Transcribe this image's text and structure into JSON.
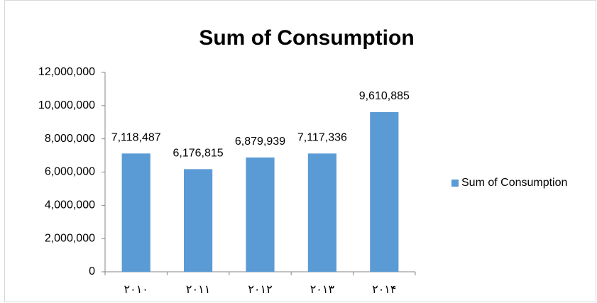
{
  "chart_data": {
    "type": "bar",
    "title": "Sum of Consumption",
    "categories": [
      "۲۰۱۰",
      "۲۰۱۱",
      "۲۰۱۲",
      "۲۰۱۳",
      "۲۰۱۴"
    ],
    "series": [
      {
        "name": "Sum of Consumption",
        "color": "#5b9bd5",
        "values": [
          7118487,
          6176815,
          6879939,
          7117336,
          9610885
        ],
        "value_labels": [
          "7,118,487",
          "6,176,815",
          "6,879,939",
          "7,117,336",
          "9,610,885"
        ]
      }
    ],
    "ylim": [
      0,
      12000000
    ],
    "yticks": [
      {
        "value": 0,
        "label": "0"
      },
      {
        "value": 2000000,
        "label": "2,000,000"
      },
      {
        "value": 4000000,
        "label": "4,000,000"
      },
      {
        "value": 6000000,
        "label": "6,000,000"
      },
      {
        "value": 8000000,
        "label": "8,000,000"
      },
      {
        "value": 10000000,
        "label": "10,000,000"
      },
      {
        "value": 12000000,
        "label": "12,000,000"
      }
    ],
    "grid": false,
    "legend": "right"
  }
}
